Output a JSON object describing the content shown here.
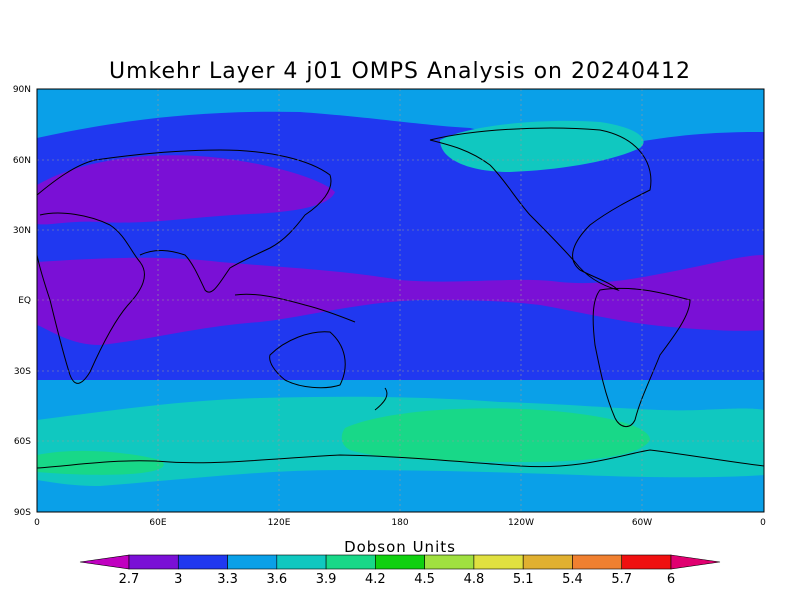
{
  "map": {
    "title": "Umkehr Layer 4 j01 OMPS Analysis on 20240412",
    "lat_tick_labels": [
      "90N",
      "60N",
      "30N",
      "EQ",
      "30S",
      "60S",
      "90S"
    ],
    "lon_tick_labels": [
      "0",
      "60E",
      "120E",
      "180",
      "120W",
      "60W",
      "0"
    ],
    "projection": "equirectangular, 0 to 360 longitude",
    "grid": true,
    "coastlines": true
  },
  "colorbar": {
    "title": "Dobson Units",
    "levels": [
      "2.7",
      "3",
      "3.3",
      "3.6",
      "3.9",
      "4.2",
      "4.5",
      "4.8",
      "5.1",
      "5.4",
      "5.7",
      "6"
    ],
    "colors": [
      "#c000c0",
      "#7a10d6",
      "#2038f0",
      "#0aa0e8",
      "#10c8c0",
      "#18d888",
      "#10d010",
      "#a0e040",
      "#e0e040",
      "#e0b030",
      "#f08030",
      "#f01010",
      "#e00070"
    ]
  },
  "chart_data": {
    "type": "heatmap",
    "title": "Umkehr Layer 4 j01 OMPS Analysis on 20240412",
    "xlabel": "",
    "ylabel": "",
    "xlim": [
      0,
      360
    ],
    "ylim": [
      -90,
      90
    ],
    "units": "Dobson Units",
    "zonal_bands": [
      {
        "lat_range": [
          60,
          90
        ],
        "value_range": [
          3.3,
          3.6
        ]
      },
      {
        "lat_range": [
          35,
          60
        ],
        "value_range": [
          2.7,
          3.0
        ]
      },
      {
        "lat_range": [
          10,
          35
        ],
        "value_range": [
          3.0,
          3.3
        ]
      },
      {
        "lat_range": [
          -15,
          10
        ],
        "value_range": [
          2.7,
          3.0
        ]
      },
      {
        "lat_range": [
          -35,
          -15
        ],
        "value_range": [
          3.0,
          3.3
        ]
      },
      {
        "lat_range": [
          -50,
          -35
        ],
        "value_range": [
          3.3,
          3.6
        ]
      },
      {
        "lat_range": [
          -65,
          -50
        ],
        "value_range": [
          3.9,
          4.2
        ]
      },
      {
        "lat_range": [
          -90,
          -65
        ],
        "value_range": [
          3.3,
          3.6
        ]
      }
    ]
  }
}
